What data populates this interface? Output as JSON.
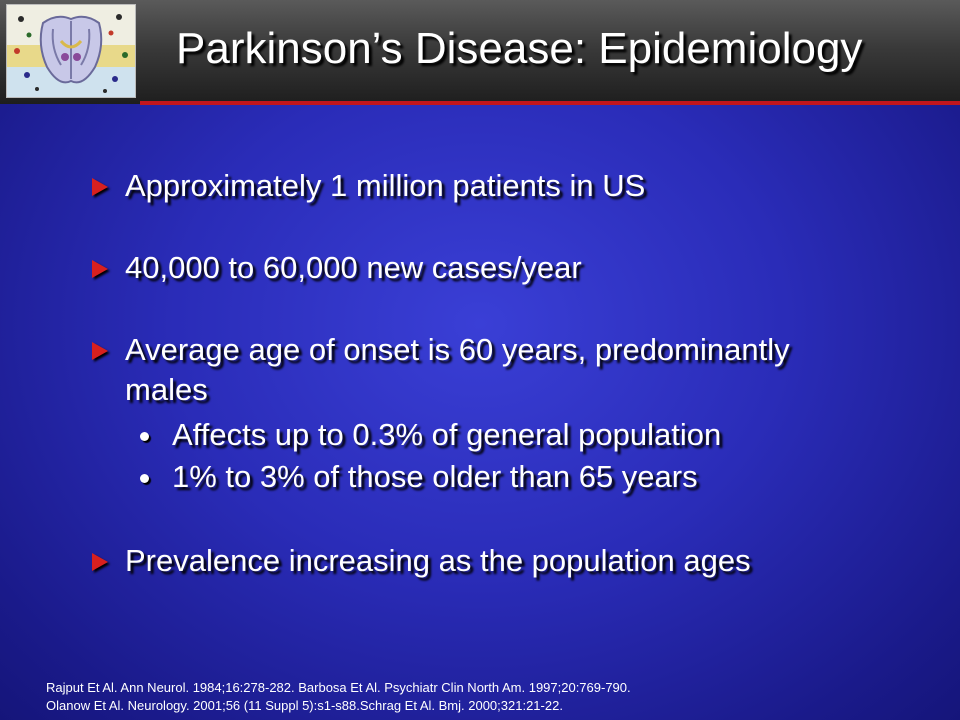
{
  "slide": {
    "title": "Parkinson’s Disease: Epidemiology",
    "bullets": [
      {
        "text": "Approximately 1 million patients in US"
      },
      {
        "text": "40,000 to 60,000 new cases/year"
      },
      {
        "text": "Average age of onset is 60 years, predominantly",
        "continuation": "males"
      },
      {
        "text": "Prevalence increasing as the population ages"
      }
    ],
    "sub_bullets": [
      {
        "text": "Affects up to 0.3% of general population"
      },
      {
        "text": "1% to 3% of those older than 65 years"
      }
    ],
    "references": [
      "Rajput Et Al. Ann Neurol. 1984;16:278-282. Barbosa Et Al. Psychiatr Clin North Am. 1997;20:769-790.",
      "Olanow Et Al. Neurology. 2001;56 (11 Suppl 5):s1-s88.Schrag Et Al. Bmj. 2000;321:21-22."
    ],
    "colors": {
      "background": "#2a2cb8",
      "header": "#3a3a3a",
      "accent_line": "#c2161d",
      "bullet_arrow": "#d8201f",
      "text": "#ffffff"
    },
    "icons": [
      "brain-logo-icon",
      "arrow-bullet-icon",
      "round-bullet-icon"
    ]
  }
}
